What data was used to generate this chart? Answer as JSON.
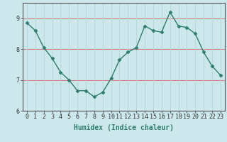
{
  "x": [
    0,
    1,
    2,
    3,
    4,
    5,
    6,
    7,
    8,
    9,
    10,
    11,
    12,
    13,
    14,
    15,
    16,
    17,
    18,
    19,
    20,
    21,
    22,
    23
  ],
  "y": [
    8.85,
    8.6,
    8.05,
    7.7,
    7.25,
    7.0,
    6.65,
    6.65,
    6.45,
    6.6,
    7.05,
    7.65,
    7.9,
    8.05,
    8.75,
    8.6,
    8.55,
    9.2,
    8.75,
    8.7,
    8.5,
    7.9,
    7.45,
    7.15
  ],
  "line_color": "#2e7d6e",
  "marker": "D",
  "marker_size": 2.5,
  "bg_color": "#cce8ec",
  "grid_color_white": "#b8d8dc",
  "xlabel": "Humidex (Indice chaleur)",
  "ylim": [
    6.0,
    9.5
  ],
  "xlim": [
    -0.5,
    23.5
  ],
  "yticks": [
    6,
    7,
    8,
    9
  ],
  "xticks": [
    0,
    1,
    2,
    3,
    4,
    5,
    6,
    7,
    8,
    9,
    10,
    11,
    12,
    13,
    14,
    15,
    16,
    17,
    18,
    19,
    20,
    21,
    22,
    23
  ],
  "hline_color": "#d08080",
  "hline_y": [
    6,
    7,
    8,
    9
  ],
  "label_color": "#2e7d6e",
  "tick_color": "#333333",
  "font_size_label": 7,
  "font_size_tick": 6
}
